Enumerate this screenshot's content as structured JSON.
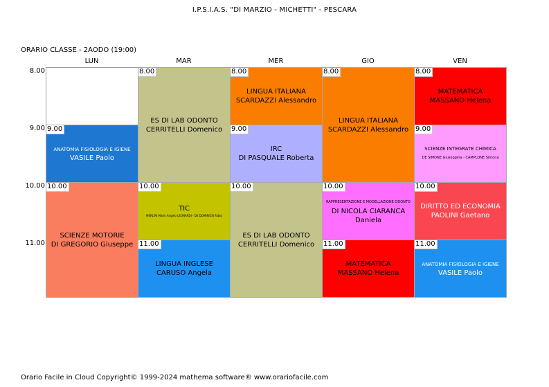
{
  "header": {
    "school": "I.P.S.I.A.S. \"DI MARZIO - MICHETTI\" - PESCARA",
    "class_label": "ORARIO CLASSE   -   2AODO  (19:00)"
  },
  "days": [
    "LUN",
    "MAR",
    "MER",
    "GIO",
    "VEN"
  ],
  "times": [
    "8.00",
    "9.00",
    "10.00",
    "11.00"
  ],
  "blocks": [
    {
      "day": "LUN",
      "time": "9.00",
      "subject": "ANATOMIA FISIOLOGIA E IGIENE",
      "teacher": "VASILE Paolo",
      "color": "#1e78d2",
      "text_color": "#ffffff",
      "style": "small"
    },
    {
      "day": "LUN",
      "time": "10.00",
      "subject": "SCIENZE MOTORIE",
      "teacher": "DI GREGORIO Giuseppe",
      "color": "#fa7d5f",
      "text_color": "#000000",
      "style": "normal"
    },
    {
      "day": "MAR",
      "time": "8.00",
      "subject": "ES  DI LAB ODONTO",
      "teacher": "CERRITELLI Domenico",
      "color": "#c3c38c",
      "text_color": "#000000",
      "style": "normal"
    },
    {
      "day": "MAR",
      "time": "10.00",
      "subject": "TIC",
      "teacher": "MERLINI Mario Angelo LEONARDI - DE DOMINICIS Fabio",
      "color": "#c3c300",
      "text_color": "#000000",
      "style": "mini"
    },
    {
      "day": "MAR",
      "time": "11.00",
      "subject": "LINGUA INGLESE",
      "teacher": "CARUSO Angela",
      "color": "#1e91f0",
      "text_color": "#000000",
      "style": "normal"
    },
    {
      "day": "MER",
      "time": "8.00",
      "subject": "LINGUA ITALIANA",
      "teacher": "SCARDAZZI Alessandro",
      "color": "#fa7d00",
      "text_color": "#000000",
      "style": "normal"
    },
    {
      "day": "MER",
      "time": "9.00",
      "subject": "IRC",
      "teacher": "DI PASQUALE Roberta",
      "color": "#afafff",
      "text_color": "#000000",
      "style": "normal"
    },
    {
      "day": "MER",
      "time": "10.00",
      "subject": "ES  DI LAB ODONTO",
      "teacher": "CERRITELLI Domenico",
      "color": "#c3c38c",
      "text_color": "#000000",
      "style": "normal"
    },
    {
      "day": "GIO",
      "time": "8.00",
      "subject": "LINGUA ITALIANA",
      "teacher": "SCARDAZZI Alessandro",
      "color": "#fa7d00",
      "text_color": "#000000",
      "style": "normal"
    },
    {
      "day": "GIO",
      "time": "10.00",
      "subject": "RAPPRESENTAZIONE E MODELLAZIONE ODONTO",
      "teacher": "DI NICOLA CIARANCA Daniela",
      "color": "#ff6eff",
      "text_color": "#000000",
      "style": "tiny"
    },
    {
      "day": "GIO",
      "time": "11.00",
      "subject": "MATEMATICA",
      "teacher": "MASSANO Helena",
      "color": "#ff0000",
      "text_color": "#000000",
      "style": "normal"
    },
    {
      "day": "VEN",
      "time": "8.00",
      "subject": "MATEMATICA",
      "teacher": "MASSANO Helena",
      "color": "#ff0000",
      "text_color": "#000000",
      "style": "normal"
    },
    {
      "day": "VEN",
      "time": "9.00",
      "subject": "SCIENZE INTEGRATE CHIMICA",
      "teacher": "DE SIMONE Giuseppina - CAMPLONE Simona",
      "color": "#ff9bff",
      "text_color": "#000000",
      "style": "chem"
    },
    {
      "day": "VEN",
      "time": "10.00",
      "subject": "DIRITTO ED ECONOMIA",
      "teacher": "PAOLINI Gaetano",
      "color": "#fa4650",
      "text_color": "#ffffff",
      "style": "normal"
    },
    {
      "day": "VEN",
      "time": "11.00",
      "subject": "ANATOMIA FISIOLOGIA E IGIENE",
      "teacher": "VASILE Paolo",
      "color": "#1e91f0",
      "text_color": "#ffffff",
      "style": "small"
    }
  ],
  "footer": "Orario Facile in Cloud  Copyright© 1999-2024 mathema software®     www.orariofacile.com"
}
